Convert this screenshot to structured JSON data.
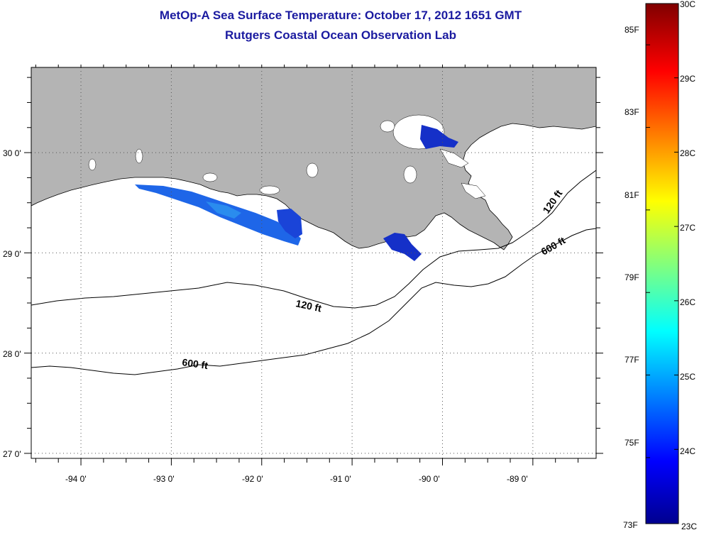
{
  "header": {
    "title_line1": "MetOp-A Sea Surface Temperature:  October 17, 2012 1651 GMT",
    "title_line2": "Rutgers Coastal Ocean Observation Lab"
  },
  "map": {
    "lon_range": [
      -94.55,
      -88.3
    ],
    "lat_range": [
      26.95,
      30.85
    ],
    "lon_ticks": [
      {
        "value": -94,
        "label": "-94 0'"
      },
      {
        "value": -93,
        "label": "-93 0'"
      },
      {
        "value": -92,
        "label": "-92 0'"
      },
      {
        "value": -91,
        "label": "-91 0'"
      },
      {
        "value": -90,
        "label": "-90 0'"
      },
      {
        "value": -89,
        "label": "-89 0'"
      }
    ],
    "lat_ticks": [
      {
        "value": 30,
        "label": "30 0'"
      },
      {
        "value": 29,
        "label": "29 0'"
      },
      {
        "value": 28,
        "label": "28 0'"
      },
      {
        "value": 27,
        "label": "27 0'"
      }
    ],
    "contour_labels": {
      "c120_mid": "120 ft",
      "c120_east": "120 ft",
      "c600_mid": "600 ft",
      "c600_east": "600 ft"
    },
    "colors": {
      "land": "#b4b4b4",
      "water": "#ffffff",
      "grid": "#555555"
    }
  },
  "colorbar": {
    "range_c": [
      23,
      30
    ],
    "celsius_labels": [
      {
        "value": 30,
        "label": "30C"
      },
      {
        "value": 29,
        "label": "29C"
      },
      {
        "value": 28,
        "label": "28C"
      },
      {
        "value": 27,
        "label": "27C"
      },
      {
        "value": 26,
        "label": "26C"
      },
      {
        "value": 25,
        "label": "25C"
      },
      {
        "value": 24,
        "label": "24C"
      },
      {
        "value": 23,
        "label": "23C"
      }
    ],
    "fahrenheit_labels": [
      {
        "value": 85,
        "label": "85F"
      },
      {
        "value": 83,
        "label": "83F"
      },
      {
        "value": 81,
        "label": "81F"
      },
      {
        "value": 79,
        "label": "79F"
      },
      {
        "value": 77,
        "label": "77F"
      },
      {
        "value": 75,
        "label": "75F"
      },
      {
        "value": 73,
        "label": "73F"
      }
    ],
    "colormap": [
      "#00008f",
      "#0000ff",
      "#00ffff",
      "#ffff00",
      "#ff0000",
      "#800000"
    ]
  }
}
